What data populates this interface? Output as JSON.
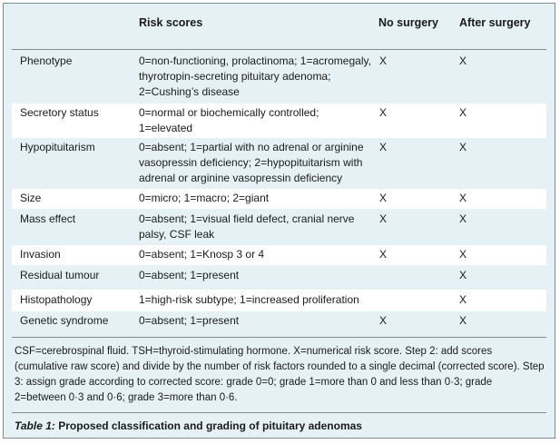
{
  "header": {
    "risk_scores": "Risk scores",
    "no_surgery": "No surgery",
    "after_surgery": "After surgery"
  },
  "rows": [
    {
      "name": "Phenotype",
      "desc": "0=non-functioning, prolactinoma; 1=acromegaly, thyrotropin-secreting pituitary adenoma; 2=Cushing’s disease",
      "no": "X",
      "after": "X"
    },
    {
      "name": "Secretory status",
      "desc": "0=normal or biochemically controlled; 1=elevated",
      "no": "X",
      "after": "X"
    },
    {
      "name": "Hypopituitarism",
      "desc": "0=absent; 1=partial with no adrenal or arginine vasopressin deficiency; 2=hypopituitarism with adrenal or arginine vasopressin deficiency",
      "no": "X",
      "after": "X"
    },
    {
      "name": "Size",
      "desc": "0=micro; 1=macro; 2=giant",
      "no": "X",
      "after": "X"
    },
    {
      "name": "Mass effect",
      "desc": "0=absent; 1=visual field defect, cranial nerve palsy, CSF leak",
      "no": "X",
      "after": "X"
    },
    {
      "name": "Invasion",
      "desc": "0=absent; 1=Knosp 3 or 4",
      "no": "X",
      "after": "X"
    },
    {
      "name": "Residual tumour",
      "desc": "0=absent; 1=present",
      "no": "",
      "after": "X"
    },
    {
      "name": "Histopathology",
      "desc": "1=high-risk subtype; 1=increased proliferation",
      "no": "",
      "after": "X"
    },
    {
      "name": "Genetic syndrome",
      "desc": "0=absent; 1=present",
      "no": "X",
      "after": "X"
    }
  ],
  "footnote": {
    "plain": "CSF=cerebrospinal fluid. TSH=thyroid-stimulating hormone. X=numerical risk score. Step 2: add scores (cumulative raw score) and divide by the number of risk factors rounded to a single decimal (corrected score). Step 3: assign grade according to corrected score: grade 0=0; grade 1=more than 0 and less than 0·3; grade 2=between 0·3 and 0·6; grade 3=more than 0·6."
  },
  "caption": {
    "label": "Table 1:",
    "title": "Proposed classification and grading of pituitary adenomas"
  }
}
